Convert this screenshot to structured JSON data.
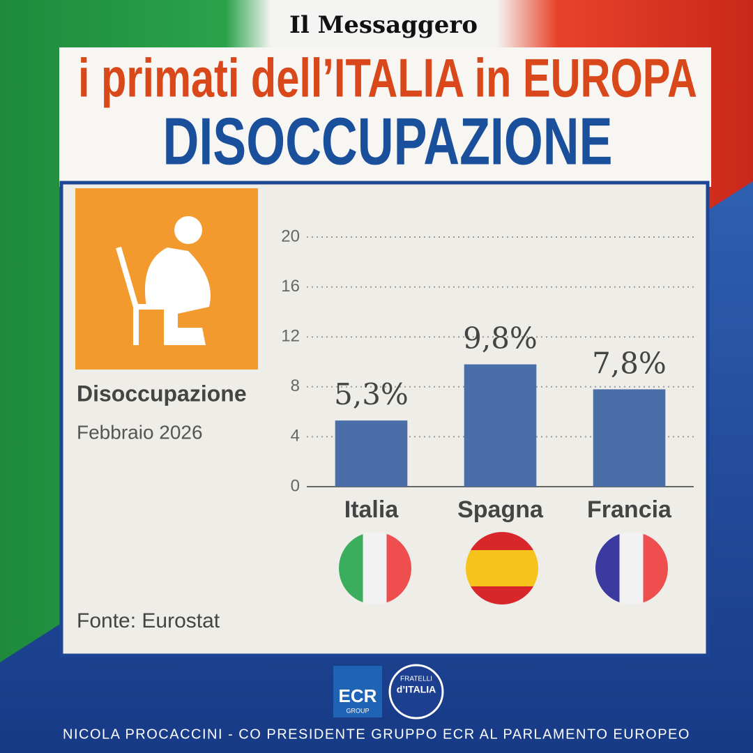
{
  "header": {
    "newspaper": "Il Messaggero",
    "headline": "i primati dell’ITALIA in EUROPA",
    "topic": "DISOCCUPAZIONE"
  },
  "chart_data": {
    "type": "bar",
    "title": "Disoccupazione",
    "subtitle": "Febbraio 2026",
    "categories": [
      "Italia",
      "Spagna",
      "Francia"
    ],
    "values": [
      5.3,
      9.8,
      7.8
    ],
    "value_labels": [
      "5,3%",
      "9,8%",
      "7,8%"
    ],
    "color": "#4a6ea8",
    "ylim": [
      0,
      20
    ],
    "yticks": [
      0,
      4,
      8,
      12,
      16,
      20
    ],
    "grid": true,
    "source": "Fonte: Eurostat"
  },
  "logos": {
    "ecr": "ECR",
    "ecr_sub": "GROUP",
    "fdi_top": "FRATELLI",
    "fdi_main": "d’ITALIA"
  },
  "footer": "NICOLA PROCACCINI - CO PRESIDENTE GRUPPO ECR AL PARLAMENTO EUROPEO"
}
